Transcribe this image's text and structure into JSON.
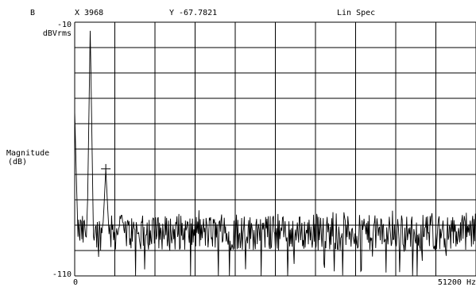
{
  "header": {
    "trace": "B",
    "x_readout": "X 3968",
    "y_readout": "Y -67.7821",
    "mode": "Lin Spec"
  },
  "colors": {
    "trace": "#000000",
    "grid": "#000000",
    "background": "#ffffff"
  },
  "chart_data": {
    "type": "line",
    "title": "Lin Spec",
    "ylabel_line1": "Magnitude",
    "ylabel_line2": "(dB)",
    "yunit": "dBVrms",
    "ytop_label": "-10",
    "ybottom_label": "-110",
    "xleft_label": "0",
    "xright_label": "51200 Hz",
    "xlim": [
      0,
      51200
    ],
    "ylim": [
      -110,
      -10
    ],
    "grid": true,
    "marker": {
      "x": 3968,
      "y": -67.7821
    },
    "peaks": [
      {
        "x": 0,
        "y": -45
      },
      {
        "x": 1984,
        "y": -13
      },
      {
        "x": 3968,
        "y": -67.8
      },
      {
        "x": 5952,
        "y": -86
      }
    ],
    "noise_floor_db": -93
  }
}
